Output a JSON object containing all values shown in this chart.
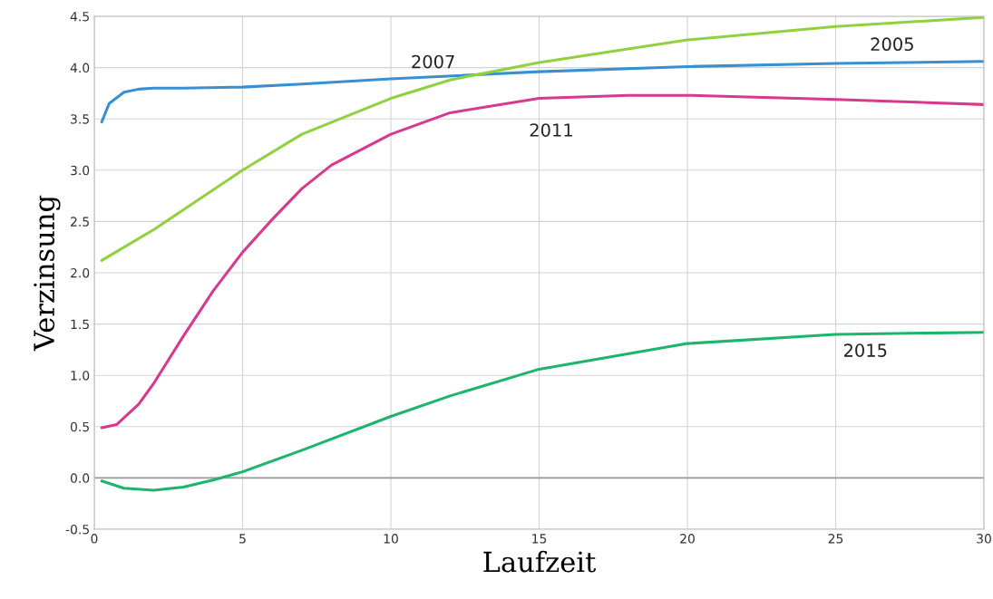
{
  "chart_data": {
    "type": "line",
    "xlabel": "Laufzeit",
    "ylabel": "Verzinsung",
    "xlim": [
      0,
      30
    ],
    "xticks": [
      0,
      5,
      10,
      15,
      20,
      25,
      30
    ],
    "ylim": [
      -0.5,
      4.5
    ],
    "yticks": [
      {
        "value": -0.5,
        "label": "-0.5"
      },
      {
        "value": 0,
        "label": "0.0"
      },
      {
        "value": 0.5,
        "label": "0.5"
      },
      {
        "value": 1,
        "label": "1.0"
      },
      {
        "value": 1.5,
        "label": "1.5"
      },
      {
        "value": 2,
        "label": "2.0"
      },
      {
        "value": 2.5,
        "label": "2.5"
      },
      {
        "value": 3,
        "label": "3.0"
      },
      {
        "value": 3.5,
        "label": "3.5"
      },
      {
        "value": 4,
        "label": "4.0"
      },
      {
        "value": 4.5,
        "label": "4.5"
      }
    ],
    "grid": true,
    "legend": false,
    "ref_lines": [
      {
        "axis": "y",
        "value": 0,
        "color": "#999999"
      }
    ],
    "series": [
      {
        "name": "2007",
        "color": "#3a8fd0",
        "x": [
          0.25,
          0.5,
          1,
          1.5,
          2,
          3,
          5,
          7,
          10,
          15,
          20,
          25,
          30
        ],
        "values": [
          3.47,
          3.65,
          3.76,
          3.79,
          3.8,
          3.8,
          3.81,
          3.84,
          3.89,
          3.96,
          4.01,
          4.04,
          4.06
        ]
      },
      {
        "name": "2005",
        "color": "#8fd13f",
        "x": [
          0.25,
          2,
          5,
          7,
          10,
          12,
          15,
          20,
          25,
          30
        ],
        "values": [
          2.12,
          2.42,
          3.0,
          3.35,
          3.7,
          3.88,
          4.05,
          4.27,
          4.4,
          4.49
        ]
      },
      {
        "name": "2011",
        "color": "#d63a8f",
        "x": [
          0.25,
          0.75,
          1.5,
          2,
          3,
          4,
          5,
          6,
          7,
          8,
          10,
          12,
          15,
          18,
          20,
          25,
          30
        ],
        "values": [
          0.49,
          0.52,
          0.72,
          0.92,
          1.38,
          1.82,
          2.2,
          2.52,
          2.82,
          3.05,
          3.35,
          3.56,
          3.7,
          3.73,
          3.73,
          3.69,
          3.64
        ]
      },
      {
        "name": "2015",
        "color": "#1db56b",
        "x": [
          0.25,
          1,
          2,
          3,
          4,
          5,
          7,
          10,
          12,
          15,
          20,
          25,
          30
        ],
        "values": [
          -0.03,
          -0.1,
          -0.12,
          -0.09,
          -0.02,
          0.06,
          0.27,
          0.6,
          0.8,
          1.06,
          1.31,
          1.4,
          1.42
        ]
      }
    ]
  }
}
